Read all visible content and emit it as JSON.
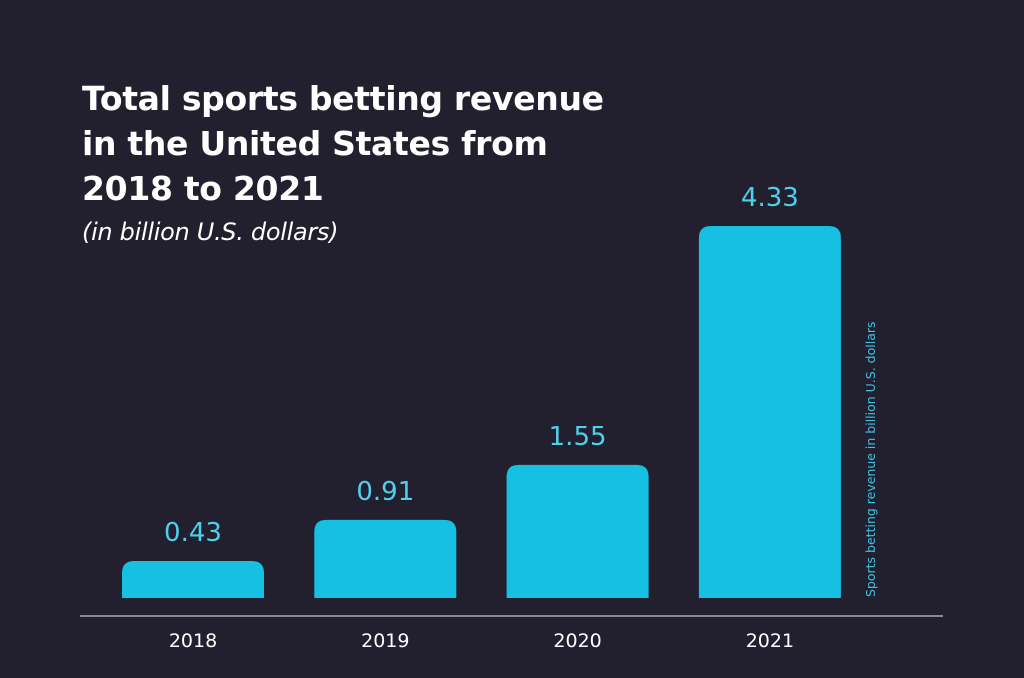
{
  "chart_data": {
    "type": "bar",
    "title": "Total sports betting revenue in the United States from 2018 to 2021",
    "title_lines": [
      "Total sports betting revenue",
      "in the United States from",
      "2018 to 2021"
    ],
    "subtitle": "(in billion U.S. dollars)",
    "categories": [
      "2018",
      "2019",
      "2020",
      "2021"
    ],
    "values": [
      0.43,
      0.91,
      1.55,
      4.33
    ],
    "value_labels": [
      "0.43",
      "0.91",
      "1.55",
      "4.33"
    ],
    "xlabel": "",
    "ylabel": "Sports betting revenue in billion U.S. dollars",
    "ylim": [
      0,
      4.33
    ],
    "grid": false,
    "colors": {
      "bar": "#16c0e3",
      "value_label": "#4fd0ea",
      "background": "#22202e",
      "axis": "#8a8894"
    }
  }
}
